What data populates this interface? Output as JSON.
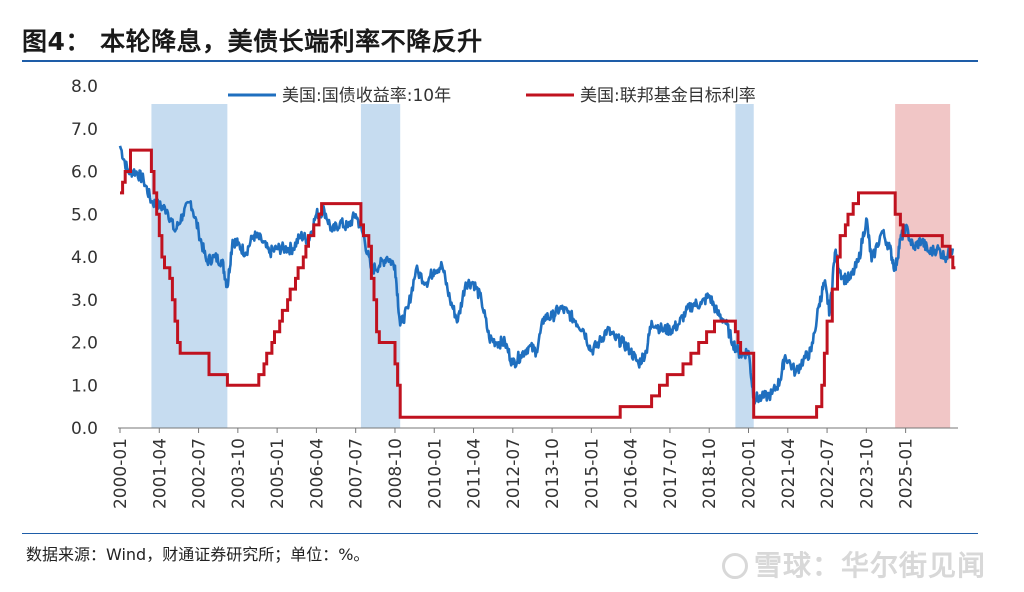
{
  "header": {
    "title": "图4：  本轮降息，美债长端利率不降反升"
  },
  "footer": {
    "source": "数据来源：Wind，财通证券研究所；单位：%。"
  },
  "watermark": {
    "text": "雪球：华尔街见闻"
  },
  "chart_data": {
    "type": "line",
    "title": "本轮降息，美债长端利率不降反升",
    "unit": "%",
    "ylim": [
      0,
      8
    ],
    "yticks": [
      "0.0",
      "1.0",
      "2.0",
      "3.0",
      "4.0",
      "5.0",
      "6.0",
      "7.0",
      "8.0"
    ],
    "xlim": [
      "2000-01",
      "2026-09"
    ],
    "xticks": [
      "2000-01",
      "2001-04",
      "2002-07",
      "2003-10",
      "2005-01",
      "2006-04",
      "2007-07",
      "2008-10",
      "2010-01",
      "2011-04",
      "2012-07",
      "2013-10",
      "2015-01",
      "2016-04",
      "2017-07",
      "2018-10",
      "2020-01",
      "2021-04",
      "2022-07",
      "2023-10",
      "2025-01"
    ],
    "legend_position": "top",
    "colors": {
      "treasury10y": "#1f6fbf",
      "fedfunds": "#c0121f",
      "shade_blue": "#c6dcf0",
      "shade_red": "#f1c6c6"
    },
    "shaded_periods": [
      {
        "start": "2001-01",
        "end": "2003-06",
        "color": "blue"
      },
      {
        "start": "2007-09",
        "end": "2008-12",
        "color": "blue"
      },
      {
        "start": "2019-08",
        "end": "2020-03",
        "color": "blue"
      },
      {
        "start": "2024-09",
        "end": "2026-06",
        "color": "red"
      }
    ],
    "series": [
      {
        "name": "美国:国债收益率:10年",
        "color": "#1f6fbf",
        "points": [
          [
            "2000-01",
            6.6
          ],
          [
            "2000-04",
            6.0
          ],
          [
            "2000-07",
            6.0
          ],
          [
            "2000-10",
            5.8
          ],
          [
            "2001-01",
            5.3
          ],
          [
            "2001-04",
            5.2
          ],
          [
            "2001-07",
            5.1
          ],
          [
            "2001-10",
            4.6
          ],
          [
            "2002-01",
            5.0
          ],
          [
            "2002-04",
            5.3
          ],
          [
            "2002-07",
            4.6
          ],
          [
            "2002-10",
            3.9
          ],
          [
            "2003-01",
            4.0
          ],
          [
            "2003-04",
            3.9
          ],
          [
            "2003-06",
            3.3
          ],
          [
            "2003-08",
            4.4
          ],
          [
            "2003-10",
            4.3
          ],
          [
            "2004-01",
            4.1
          ],
          [
            "2004-04",
            4.5
          ],
          [
            "2004-07",
            4.4
          ],
          [
            "2004-10",
            4.1
          ],
          [
            "2005-01",
            4.2
          ],
          [
            "2005-04",
            4.2
          ],
          [
            "2005-07",
            4.2
          ],
          [
            "2005-10",
            4.5
          ],
          [
            "2006-01",
            4.4
          ],
          [
            "2006-04",
            5.0
          ],
          [
            "2006-07",
            5.1
          ],
          [
            "2006-10",
            4.6
          ],
          [
            "2007-01",
            4.8
          ],
          [
            "2007-04",
            4.7
          ],
          [
            "2007-07",
            5.0
          ],
          [
            "2007-10",
            4.5
          ],
          [
            "2008-01",
            3.7
          ],
          [
            "2008-04",
            3.8
          ],
          [
            "2008-07",
            4.0
          ],
          [
            "2008-10",
            3.8
          ],
          [
            "2008-12",
            2.4
          ],
          [
            "2009-03",
            2.8
          ],
          [
            "2009-06",
            3.7
          ],
          [
            "2009-10",
            3.4
          ],
          [
            "2010-01",
            3.7
          ],
          [
            "2010-04",
            3.8
          ],
          [
            "2010-07",
            3.0
          ],
          [
            "2010-10",
            2.5
          ],
          [
            "2011-01",
            3.4
          ],
          [
            "2011-04",
            3.4
          ],
          [
            "2011-07",
            3.0
          ],
          [
            "2011-10",
            2.1
          ],
          [
            "2012-01",
            2.0
          ],
          [
            "2012-04",
            2.0
          ],
          [
            "2012-07",
            1.5
          ],
          [
            "2012-10",
            1.7
          ],
          [
            "2013-01",
            1.9
          ],
          [
            "2013-04",
            1.8
          ],
          [
            "2013-07",
            2.6
          ],
          [
            "2013-10",
            2.6
          ],
          [
            "2014-01",
            2.8
          ],
          [
            "2014-04",
            2.7
          ],
          [
            "2014-07",
            2.5
          ],
          [
            "2014-10",
            2.3
          ],
          [
            "2015-01",
            1.8
          ],
          [
            "2015-04",
            2.0
          ],
          [
            "2015-07",
            2.3
          ],
          [
            "2015-10",
            2.1
          ],
          [
            "2016-01",
            2.0
          ],
          [
            "2016-04",
            1.8
          ],
          [
            "2016-07",
            1.5
          ],
          [
            "2016-10",
            1.8
          ],
          [
            "2016-12",
            2.5
          ],
          [
            "2017-04",
            2.3
          ],
          [
            "2017-07",
            2.3
          ],
          [
            "2017-10",
            2.4
          ],
          [
            "2018-01",
            2.7
          ],
          [
            "2018-04",
            2.9
          ],
          [
            "2018-07",
            2.9
          ],
          [
            "2018-10",
            3.1
          ],
          [
            "2019-01",
            2.7
          ],
          [
            "2019-04",
            2.5
          ],
          [
            "2019-07",
            2.0
          ],
          [
            "2019-10",
            1.7
          ],
          [
            "2020-01",
            1.8
          ],
          [
            "2020-03",
            0.7
          ],
          [
            "2020-06",
            0.7
          ],
          [
            "2020-10",
            0.8
          ],
          [
            "2021-01",
            1.1
          ],
          [
            "2021-03",
            1.7
          ],
          [
            "2021-07",
            1.3
          ],
          [
            "2021-10",
            1.6
          ],
          [
            "2022-01",
            1.8
          ],
          [
            "2022-04",
            2.9
          ],
          [
            "2022-06",
            3.4
          ],
          [
            "2022-08",
            2.7
          ],
          [
            "2022-10",
            4.1
          ],
          [
            "2023-01",
            3.5
          ],
          [
            "2023-04",
            3.5
          ],
          [
            "2023-07",
            3.9
          ],
          [
            "2023-10",
            4.9
          ],
          [
            "2023-12",
            3.9
          ],
          [
            "2024-04",
            4.6
          ],
          [
            "2024-07",
            4.2
          ],
          [
            "2024-09",
            3.7
          ],
          [
            "2024-11",
            4.4
          ],
          [
            "2025-01",
            4.7
          ],
          [
            "2025-04",
            4.2
          ],
          [
            "2025-07",
            4.4
          ],
          [
            "2025-10",
            4.1
          ],
          [
            "2026-01",
            4.2
          ],
          [
            "2026-04",
            4.0
          ],
          [
            "2026-07",
            4.2
          ]
        ]
      },
      {
        "name": "美国:联邦基金目标利率",
        "color": "#c0121f",
        "points": [
          [
            "2000-01",
            5.5
          ],
          [
            "2000-02",
            5.75
          ],
          [
            "2000-03",
            6.0
          ],
          [
            "2000-05",
            6.5
          ],
          [
            "2001-01",
            6.0
          ],
          [
            "2001-02",
            5.5
          ],
          [
            "2001-03",
            5.0
          ],
          [
            "2001-04",
            4.5
          ],
          [
            "2001-05",
            4.0
          ],
          [
            "2001-06",
            3.75
          ],
          [
            "2001-08",
            3.5
          ],
          [
            "2001-09",
            3.0
          ],
          [
            "2001-10",
            2.5
          ],
          [
            "2001-11",
            2.0
          ],
          [
            "2001-12",
            1.75
          ],
          [
            "2002-11",
            1.25
          ],
          [
            "2003-06",
            1.0
          ],
          [
            "2004-06",
            1.25
          ],
          [
            "2004-08",
            1.5
          ],
          [
            "2004-09",
            1.75
          ],
          [
            "2004-11",
            2.0
          ],
          [
            "2004-12",
            2.25
          ],
          [
            "2005-02",
            2.5
          ],
          [
            "2005-03",
            2.75
          ],
          [
            "2005-05",
            3.0
          ],
          [
            "2005-06",
            3.25
          ],
          [
            "2005-08",
            3.5
          ],
          [
            "2005-09",
            3.75
          ],
          [
            "2005-11",
            4.0
          ],
          [
            "2005-12",
            4.25
          ],
          [
            "2006-01",
            4.5
          ],
          [
            "2006-03",
            4.75
          ],
          [
            "2006-05",
            5.0
          ],
          [
            "2006-06",
            5.25
          ],
          [
            "2007-09",
            4.75
          ],
          [
            "2007-10",
            4.5
          ],
          [
            "2007-12",
            4.25
          ],
          [
            "2008-01",
            3.5
          ],
          [
            "2008-02",
            3.0
          ],
          [
            "2008-03",
            2.25
          ],
          [
            "2008-04",
            2.0
          ],
          [
            "2008-10",
            1.5
          ],
          [
            "2008-11",
            1.0
          ],
          [
            "2008-12",
            0.25
          ],
          [
            "2015-12",
            0.5
          ],
          [
            "2016-12",
            0.75
          ],
          [
            "2017-03",
            1.0
          ],
          [
            "2017-06",
            1.25
          ],
          [
            "2017-12",
            1.5
          ],
          [
            "2018-03",
            1.75
          ],
          [
            "2018-06",
            2.0
          ],
          [
            "2018-09",
            2.25
          ],
          [
            "2018-12",
            2.5
          ],
          [
            "2019-08",
            2.25
          ],
          [
            "2019-09",
            2.0
          ],
          [
            "2019-10",
            1.75
          ],
          [
            "2020-03",
            0.25
          ],
          [
            "2022-03",
            0.5
          ],
          [
            "2022-05",
            1.0
          ],
          [
            "2022-06",
            1.75
          ],
          [
            "2022-07",
            2.5
          ],
          [
            "2022-09",
            3.25
          ],
          [
            "2022-11",
            4.0
          ],
          [
            "2022-12",
            4.5
          ],
          [
            "2023-02",
            4.75
          ],
          [
            "2023-03",
            5.0
          ],
          [
            "2023-05",
            5.25
          ],
          [
            "2023-07",
            5.5
          ],
          [
            "2024-09",
            5.0
          ],
          [
            "2024-11",
            4.75
          ],
          [
            "2024-12",
            4.5
          ],
          [
            "2026-03",
            4.25
          ],
          [
            "2026-06",
            4.0
          ],
          [
            "2026-07",
            3.75
          ]
        ]
      }
    ]
  }
}
